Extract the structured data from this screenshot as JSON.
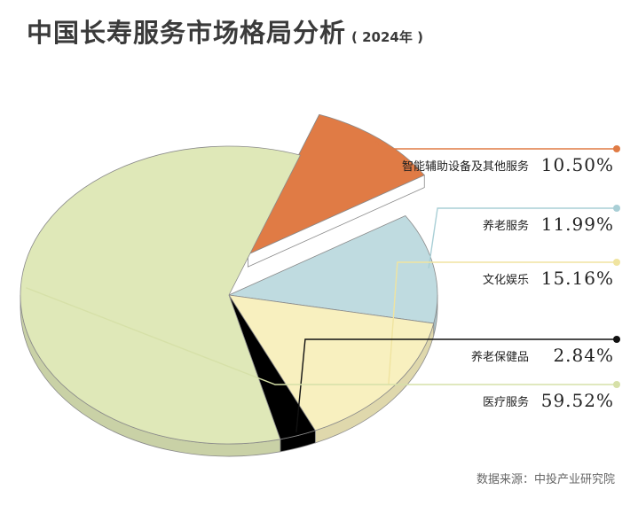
{
  "header": {
    "title": "中国长寿服务市场格局分析",
    "subtitle": "( 2024年 )"
  },
  "source": "数据来源：中投产业研究院",
  "chart_data": {
    "type": "pie",
    "title": "中国长寿服务市场格局分析",
    "subtitle": "( 2024年 )",
    "unit": "%",
    "slices": [
      {
        "name": "智能辅助设备及其他服务",
        "value": 10.5,
        "label": "10.50%",
        "color": "#e07b45",
        "dot": "#e07b45",
        "exploded": true
      },
      {
        "name": "养老服务",
        "value": 11.99,
        "label": "11.99%",
        "color": "#bfdbe0",
        "dot": "#a9cfd6",
        "exploded": false
      },
      {
        "name": "文化娱乐",
        "value": 15.16,
        "label": "15.16%",
        "color": "#f8f0bf",
        "dot": "#f0e4a0",
        "exploded": false
      },
      {
        "name": "养老保健品",
        "value": 2.84,
        "label": "2.84%",
        "color": "#000000",
        "dot": "#111111",
        "exploded": false
      },
      {
        "name": "医疗服务",
        "value": 59.52,
        "label": "59.52%",
        "color": "#dfe8b8",
        "dot": "#d6e0a8",
        "exploded": false
      }
    ],
    "legend": "right"
  }
}
